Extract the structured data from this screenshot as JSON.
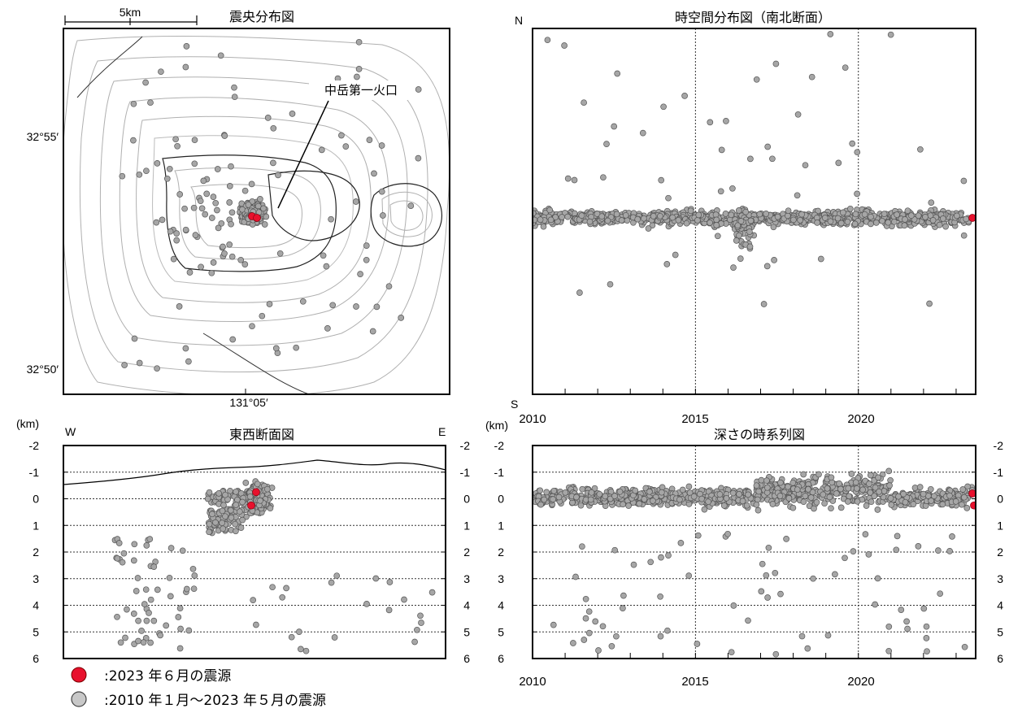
{
  "map": {
    "title": "震央分布図",
    "scale_label": "5km",
    "lat_labels": [
      "32°55′",
      "32°50′"
    ],
    "lon_label": "131°05′",
    "crater_label": "中岳第一火口"
  },
  "legend": [
    {
      "symbol": "red-dot",
      "color": "#e8112d",
      "text": ":2023 年６月の震源"
    },
    {
      "symbol": "gray-dot",
      "color": "#a6a6a6",
      "text": ":2010 年１月～2023 年５月の震源"
    }
  ],
  "chart_data": [
    {
      "type": "scatter",
      "title": "時空間分布図（南北断面）",
      "top_label": "N",
      "bottom_label": "S",
      "x_ticks": [
        "2010",
        "2015",
        "2020"
      ],
      "xlim": [
        2010,
        2023.6
      ],
      "grid": "vertical dotted at 2015 and 2020",
      "series": [
        {
          "color": "#a6a6a6",
          "points": [
            [
              2010.3,
              0.58
            ],
            [
              2011.2,
              0.59
            ],
            [
              2011.8,
              0.56
            ],
            [
              2013.0,
              0.57
            ],
            [
              2014.4,
              0.58
            ],
            [
              2015.3,
              0.57
            ],
            [
              2016.3,
              0.6
            ],
            [
              2016.4,
              0.65
            ],
            [
              2017.5,
              0.57
            ],
            [
              2018.7,
              0.58
            ],
            [
              2019.4,
              0.56
            ],
            [
              2020.6,
              0.57
            ],
            [
              2021.9,
              0.58
            ],
            [
              2023.1,
              0.59
            ]
          ]
        },
        {
          "color": "#e8112d",
          "points": [
            [
              2023.5,
              0.59
            ]
          ]
        }
      ]
    },
    {
      "type": "scatter",
      "title": "東西断面図",
      "unit_label": "(km)",
      "left_label": "W",
      "right_label": "E",
      "y_ticks": [
        "-2",
        "-1",
        "0",
        "1",
        "2",
        "3",
        "4",
        "5",
        "6"
      ],
      "ylim": [
        -2,
        6
      ],
      "grid": "horizontal dotted",
      "series": [
        {
          "color": "#a6a6a6",
          "points": [
            [
              0.5,
              -0.2
            ],
            [
              0.5,
              0.4
            ],
            [
              0.52,
              0.8
            ],
            [
              0.47,
              0.0
            ],
            [
              0.55,
              0.2
            ],
            [
              0.3,
              0.5
            ],
            [
              0.15,
              4.0
            ],
            [
              0.2,
              3.5
            ],
            [
              0.1,
              1.5
            ],
            [
              0.65,
              4.3
            ],
            [
              0.8,
              4.8
            ],
            [
              0.9,
              3.7
            ],
            [
              0.95,
              4.4
            ]
          ]
        },
        {
          "color": "#e8112d",
          "points": [
            [
              0.505,
              0.2
            ],
            [
              0.495,
              0.55
            ]
          ]
        }
      ]
    },
    {
      "type": "scatter",
      "title": "深さの時系列図",
      "unit_label": "(km)",
      "y_ticks": [
        "-2",
        "-1",
        "0",
        "1",
        "2",
        "3",
        "4",
        "5",
        "6"
      ],
      "ylim": [
        -2,
        6
      ],
      "x_ticks": [
        "2010",
        "2015",
        "2020"
      ],
      "xlim": [
        2010,
        2023.6
      ],
      "grid": "horizontal dotted; vertical dotted at 2015 and 2020",
      "series": [
        {
          "color": "#a6a6a6",
          "points": [
            [
              2010.5,
              0.0
            ],
            [
              2011.5,
              0.2
            ],
            [
              2012.5,
              -0.3
            ],
            [
              2013.5,
              0.1
            ],
            [
              2014.5,
              -0.4
            ],
            [
              2015.5,
              0.2
            ],
            [
              2016.5,
              0.5
            ],
            [
              2017.5,
              -0.5
            ],
            [
              2018.5,
              -0.4
            ],
            [
              2019.5,
              -0.6
            ],
            [
              2020.5,
              -0.2
            ],
            [
              2021.5,
              0.0
            ],
            [
              2022.5,
              -0.2
            ],
            [
              2016.8,
              2.0
            ],
            [
              2017.3,
              3.5
            ],
            [
              2021.3,
              3.2
            ]
          ]
        },
        {
          "color": "#e8112d",
          "points": [
            [
              2023.5,
              0.2
            ],
            [
              2023.55,
              0.55
            ]
          ]
        }
      ]
    }
  ]
}
